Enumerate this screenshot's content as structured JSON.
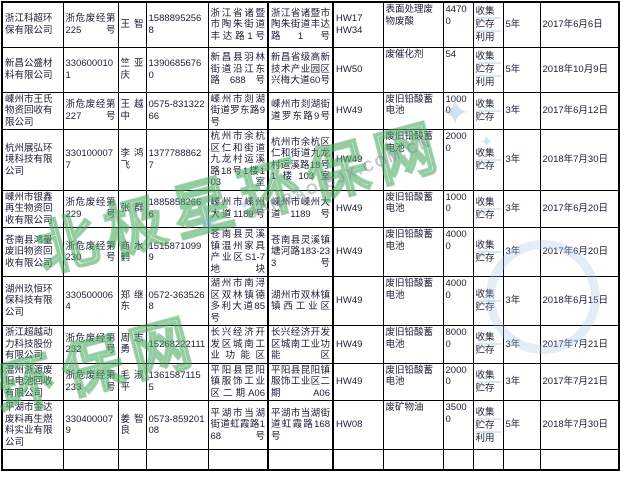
{
  "table": {
    "rows": [
      {
        "company": "浙江科超环保有限公司",
        "license": "浙危废经第225号",
        "contact": "王智",
        "phone": "15888952568",
        "address1": "浙江省诸暨市陶朱街道丰达路1号",
        "address2": "浙江省诸暨市陶朱街道丰达路1号",
        "codes": [
          "HW17",
          "HW34"
        ],
        "waste": "表面处理废物废酸",
        "qty": "44700",
        "methods": [
          "收集",
          "贮存",
          "利用"
        ],
        "years": "5年",
        "date": "2017年6月6日"
      },
      {
        "company": "新昌公盛材料有限公司",
        "license": "3306000101",
        "contact": "竺亚庆",
        "phone": "13906856760",
        "address1": "新昌县羽林街道沿江东路688号",
        "address2": "新昌省级高新技术产业园区兴梅大道60号",
        "codes": [
          "HW50"
        ],
        "waste": "废催化剂",
        "qty": "54",
        "methods": [
          "收集",
          "贮存",
          "利用"
        ],
        "years": "5年",
        "date": "2018年10月9日"
      },
      {
        "company": "嵊州市王氏物资回收有限公司",
        "license": "浙危废经第227号",
        "contact": "王越中",
        "phone": "0575-83132266",
        "address1": "嵊州市剡湖街道罗东路9号",
        "address2": "嵊州市剡湖街道罗东路9号",
        "codes": [
          "HW49"
        ],
        "waste": "废旧铅酸蓄电池",
        "qty": "10000",
        "methods": [
          "收集",
          "贮存"
        ],
        "years": "3年",
        "date": "2017年6月12日"
      },
      {
        "company": "杭州展弘环境科技有限公司",
        "license": "3301000077",
        "contact": "李鸿飞",
        "phone": "13777888627",
        "address1": "杭州市余杭区仁和街道九龙村运溪路18号1楼103室",
        "address2": "杭州市余杭区仁和街道九龙村运溪路18号1楼103室",
        "codes": [
          "HW49"
        ],
        "waste": "废旧铅酸蓄电池",
        "qty": "20000",
        "methods": [
          "收集",
          "贮存"
        ],
        "years": "3年",
        "date": "2018年7月30日"
      },
      {
        "company": "嵊州市银鑫再生物资回收有限公司",
        "license": "浙危废经第229号",
        "contact": "张群",
        "phone": "18858582666",
        "address1": "嵊州市嵊州大道1189号",
        "address2": "嵊州市嵊州大道1189号",
        "codes": [
          "HW49"
        ],
        "waste": "废旧铅酸蓄电池",
        "qty": "10000",
        "methods": [
          "收集",
          "贮存"
        ],
        "years": "3年",
        "date": "2017年6月20日"
      },
      {
        "company": "苍南县鸿量废旧物资回收有限公司",
        "license": "浙危废经第230号",
        "contact": "商水鹤",
        "phone": "15158710999",
        "address1": "苍南县灵溪镇温州家具产业区S1-7地块",
        "address2": "苍南县灵溪镇塘河路183-233号",
        "codes": [
          "HW49"
        ],
        "waste": "废旧铅酸蓄电池",
        "qty": "40000",
        "methods": [
          "收集",
          "贮存"
        ],
        "years": "3年",
        "date": "2017年6月20日"
      },
      {
        "company": "湖州玖恒环保科技有限公司",
        "license": "3305000064",
        "contact": "郑继东",
        "phone": "0572-3635268",
        "address1": "湖州市南浔区双林镇德多利大道85号",
        "address2": "湖州市双林镇镇西工业区",
        "codes": [
          "HW49"
        ],
        "waste": "废旧铅酸蓄电池",
        "qty": "40000",
        "methods": [
          "收集",
          "贮存"
        ],
        "years": "3年",
        "date": "2018年6月15日"
      },
      {
        "company": "浙江超越动力科技股份有限公司",
        "license": "浙危废经第232号",
        "contact": "周志勇",
        "phone": "15268222111",
        "address1": "长兴经济开发区城南工业功能区",
        "address2": "长兴经济开发区城南工业功能区",
        "codes": [
          "HW49"
        ],
        "waste": "废旧铅酸蓄电池",
        "qty": "80000",
        "methods": [
          "收集",
          "贮存"
        ],
        "years": "3年",
        "date": "2017年7月21日"
      },
      {
        "company": "温州浙源废旧电池回收有限公司",
        "license": "浙危废经第233号",
        "contact": "毛淑平",
        "phone": "13615871155",
        "address1": "平阳县昆阳镇服饰工业区二期A06",
        "address2": "平阳县昆阳镇服饰工业区二期A06",
        "codes": [
          "HW49"
        ],
        "waste": "废旧铅酸蓄电池",
        "qty": "20000",
        "methods": [
          "收集",
          "贮存"
        ],
        "years": "3年",
        "date": "2017年7月21日"
      },
      {
        "company": "平湖市金达废料再生燃料实业有限公司",
        "license": "3304000079",
        "contact": "姜智良",
        "phone": "0573-85920108",
        "address1": "平湖市当湖街道虹霞路168号",
        "address2": "平湖市当湖街道虹霞路168号",
        "codes": [
          "HW08"
        ],
        "waste": "废矿物油",
        "qty": "35000",
        "methods": [
          "收集",
          "贮存",
          "利用"
        ],
        "years": "5年",
        "date": "2018年7月30日"
      }
    ]
  },
  "watermark": {
    "brand_text": "北极星环保网",
    "domain_text": "UANBAO.BJX.COM.CN",
    "star_glyph": "✦",
    "green_color": "#46a85c",
    "gray_color": "#808a96",
    "blue_color": "#82b2e2"
  }
}
